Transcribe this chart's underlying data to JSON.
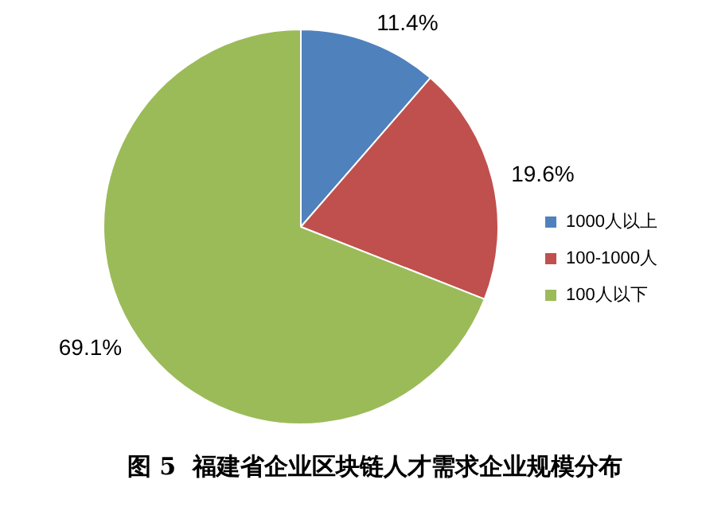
{
  "chart_data": {
    "type": "pie",
    "title": "图 5  福建省企业区块链人才需求企业规模分布",
    "categories": [
      "1000人以上",
      "100-1000人",
      "100人以下"
    ],
    "values": [
      11.4,
      19.6,
      69.1
    ],
    "value_labels": [
      "11.4%",
      "19.6%",
      "69.1%"
    ],
    "colors": [
      "#4f81bd",
      "#c0504d",
      "#9bbb59"
    ],
    "legend": "right"
  }
}
